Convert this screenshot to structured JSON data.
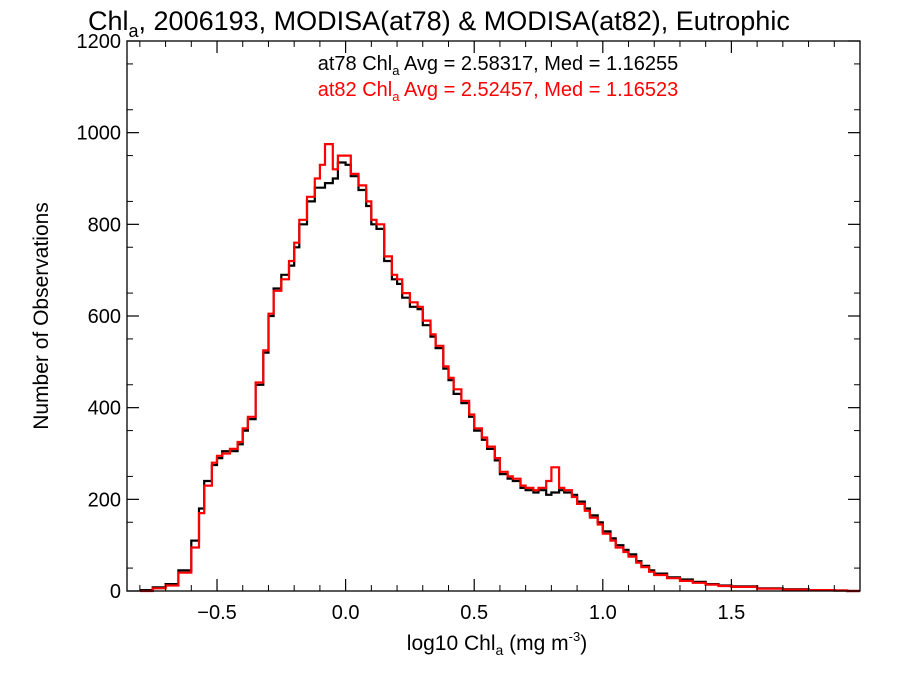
{
  "chart_data": {
    "type": "histogram-step",
    "title": {
      "pre": "Chl",
      "sub": "a",
      "post": ", 2006193, MODISA(at78) & MODISA(at82), Eutrophic"
    },
    "xlabel": {
      "pre": "log10 Chl",
      "sub": "a",
      "mid": " (mg m",
      "sup": "-3",
      "post": ")"
    },
    "ylabel": "Number of Observations",
    "xlim": [
      -0.85,
      2.0
    ],
    "ylim": [
      0,
      1200
    ],
    "xticks": [
      -0.5,
      0.0,
      0.5,
      1.0,
      1.5
    ],
    "xtick_labels": [
      "−0.5",
      "0.0",
      "0.5",
      "1.0",
      "1.5"
    ],
    "yticks": [
      0,
      200,
      400,
      600,
      800,
      1000,
      1200
    ],
    "ytick_labels": [
      "0",
      "200",
      "400",
      "600",
      "800",
      "1000",
      "1200"
    ],
    "annotations": [
      {
        "pre": "at78 Chl",
        "sub": "a",
        "post": " Avg = 2.58317, Med = 1.16255",
        "color": "#000000"
      },
      {
        "pre": "at82 Chl",
        "sub": "a",
        "post": " Avg = 2.52457, Med = 1.16523",
        "color": "#ff0000"
      }
    ],
    "series": [
      {
        "color": "#000000",
        "points": [
          [
            -0.8,
            2
          ],
          [
            -0.75,
            8
          ],
          [
            -0.7,
            15
          ],
          [
            -0.65,
            45
          ],
          [
            -0.6,
            110
          ],
          [
            -0.57,
            180
          ],
          [
            -0.55,
            240
          ],
          [
            -0.52,
            275
          ],
          [
            -0.5,
            290
          ],
          [
            -0.48,
            305
          ],
          [
            -0.45,
            305
          ],
          [
            -0.42,
            320
          ],
          [
            -0.4,
            350
          ],
          [
            -0.38,
            375
          ],
          [
            -0.35,
            450
          ],
          [
            -0.32,
            520
          ],
          [
            -0.3,
            600
          ],
          [
            -0.28,
            660
          ],
          [
            -0.25,
            690
          ],
          [
            -0.22,
            710
          ],
          [
            -0.2,
            750
          ],
          [
            -0.18,
            800
          ],
          [
            -0.15,
            850
          ],
          [
            -0.12,
            880
          ],
          [
            -0.1,
            880
          ],
          [
            -0.08,
            890
          ],
          [
            -0.05,
            900
          ],
          [
            -0.03,
            935
          ],
          [
            0.0,
            930
          ],
          [
            0.02,
            905
          ],
          [
            0.05,
            875
          ],
          [
            0.08,
            840
          ],
          [
            0.1,
            800
          ],
          [
            0.12,
            790
          ],
          [
            0.15,
            720
          ],
          [
            0.18,
            680
          ],
          [
            0.2,
            670
          ],
          [
            0.22,
            640
          ],
          [
            0.25,
            620
          ],
          [
            0.28,
            615
          ],
          [
            0.3,
            580
          ],
          [
            0.33,
            555
          ],
          [
            0.35,
            530
          ],
          [
            0.38,
            485
          ],
          [
            0.4,
            460
          ],
          [
            0.42,
            430
          ],
          [
            0.45,
            410
          ],
          [
            0.48,
            380
          ],
          [
            0.5,
            350
          ],
          [
            0.53,
            330
          ],
          [
            0.55,
            310
          ],
          [
            0.58,
            285
          ],
          [
            0.6,
            255
          ],
          [
            0.63,
            245
          ],
          [
            0.65,
            240
          ],
          [
            0.68,
            225
          ],
          [
            0.7,
            220
          ],
          [
            0.73,
            215
          ],
          [
            0.75,
            220
          ],
          [
            0.78,
            210
          ],
          [
            0.8,
            215
          ],
          [
            0.83,
            220
          ],
          [
            0.85,
            215
          ],
          [
            0.88,
            210
          ],
          [
            0.9,
            195
          ],
          [
            0.93,
            180
          ],
          [
            0.95,
            165
          ],
          [
            0.98,
            150
          ],
          [
            1.0,
            130
          ],
          [
            1.03,
            115
          ],
          [
            1.05,
            100
          ],
          [
            1.08,
            90
          ],
          [
            1.1,
            80
          ],
          [
            1.13,
            65
          ],
          [
            1.15,
            55
          ],
          [
            1.18,
            45
          ],
          [
            1.2,
            38
          ],
          [
            1.25,
            30
          ],
          [
            1.3,
            25
          ],
          [
            1.35,
            20
          ],
          [
            1.4,
            15
          ],
          [
            1.45,
            12
          ],
          [
            1.5,
            10
          ],
          [
            1.6,
            6
          ],
          [
            1.7,
            4
          ],
          [
            1.8,
            2
          ],
          [
            1.9,
            1
          ],
          [
            1.95,
            0
          ]
        ]
      },
      {
        "color": "#ff0000",
        "points": [
          [
            -0.8,
            0
          ],
          [
            -0.75,
            6
          ],
          [
            -0.7,
            12
          ],
          [
            -0.65,
            40
          ],
          [
            -0.6,
            95
          ],
          [
            -0.57,
            170
          ],
          [
            -0.55,
            230
          ],
          [
            -0.52,
            280
          ],
          [
            -0.5,
            295
          ],
          [
            -0.48,
            300
          ],
          [
            -0.45,
            310
          ],
          [
            -0.42,
            325
          ],
          [
            -0.4,
            355
          ],
          [
            -0.38,
            380
          ],
          [
            -0.35,
            455
          ],
          [
            -0.32,
            525
          ],
          [
            -0.3,
            605
          ],
          [
            -0.28,
            655
          ],
          [
            -0.25,
            680
          ],
          [
            -0.22,
            720
          ],
          [
            -0.2,
            760
          ],
          [
            -0.18,
            810
          ],
          [
            -0.15,
            860
          ],
          [
            -0.12,
            900
          ],
          [
            -0.1,
            930
          ],
          [
            -0.08,
            975
          ],
          [
            -0.05,
            920
          ],
          [
            -0.03,
            950
          ],
          [
            0.0,
            950
          ],
          [
            0.02,
            910
          ],
          [
            0.05,
            885
          ],
          [
            0.08,
            850
          ],
          [
            0.1,
            810
          ],
          [
            0.12,
            800
          ],
          [
            0.15,
            730
          ],
          [
            0.18,
            690
          ],
          [
            0.2,
            680
          ],
          [
            0.22,
            650
          ],
          [
            0.25,
            630
          ],
          [
            0.28,
            620
          ],
          [
            0.3,
            590
          ],
          [
            0.33,
            560
          ],
          [
            0.35,
            535
          ],
          [
            0.38,
            490
          ],
          [
            0.4,
            465
          ],
          [
            0.42,
            440
          ],
          [
            0.45,
            415
          ],
          [
            0.48,
            385
          ],
          [
            0.5,
            355
          ],
          [
            0.53,
            335
          ],
          [
            0.55,
            315
          ],
          [
            0.58,
            290
          ],
          [
            0.6,
            260
          ],
          [
            0.63,
            250
          ],
          [
            0.65,
            245
          ],
          [
            0.68,
            230
          ],
          [
            0.7,
            225
          ],
          [
            0.73,
            220
          ],
          [
            0.75,
            225
          ],
          [
            0.78,
            240
          ],
          [
            0.8,
            270
          ],
          [
            0.83,
            225
          ],
          [
            0.85,
            220
          ],
          [
            0.88,
            205
          ],
          [
            0.9,
            190
          ],
          [
            0.93,
            175
          ],
          [
            0.95,
            160
          ],
          [
            0.98,
            145
          ],
          [
            1.0,
            125
          ],
          [
            1.03,
            110
          ],
          [
            1.05,
            95
          ],
          [
            1.08,
            85
          ],
          [
            1.1,
            75
          ],
          [
            1.13,
            62
          ],
          [
            1.15,
            52
          ],
          [
            1.18,
            42
          ],
          [
            1.2,
            35
          ],
          [
            1.25,
            28
          ],
          [
            1.3,
            22
          ],
          [
            1.35,
            18
          ],
          [
            1.4,
            14
          ],
          [
            1.45,
            11
          ],
          [
            1.5,
            9
          ],
          [
            1.6,
            5
          ],
          [
            1.7,
            3
          ],
          [
            1.8,
            2
          ],
          [
            1.9,
            1
          ],
          [
            1.95,
            0
          ]
        ]
      }
    ]
  }
}
